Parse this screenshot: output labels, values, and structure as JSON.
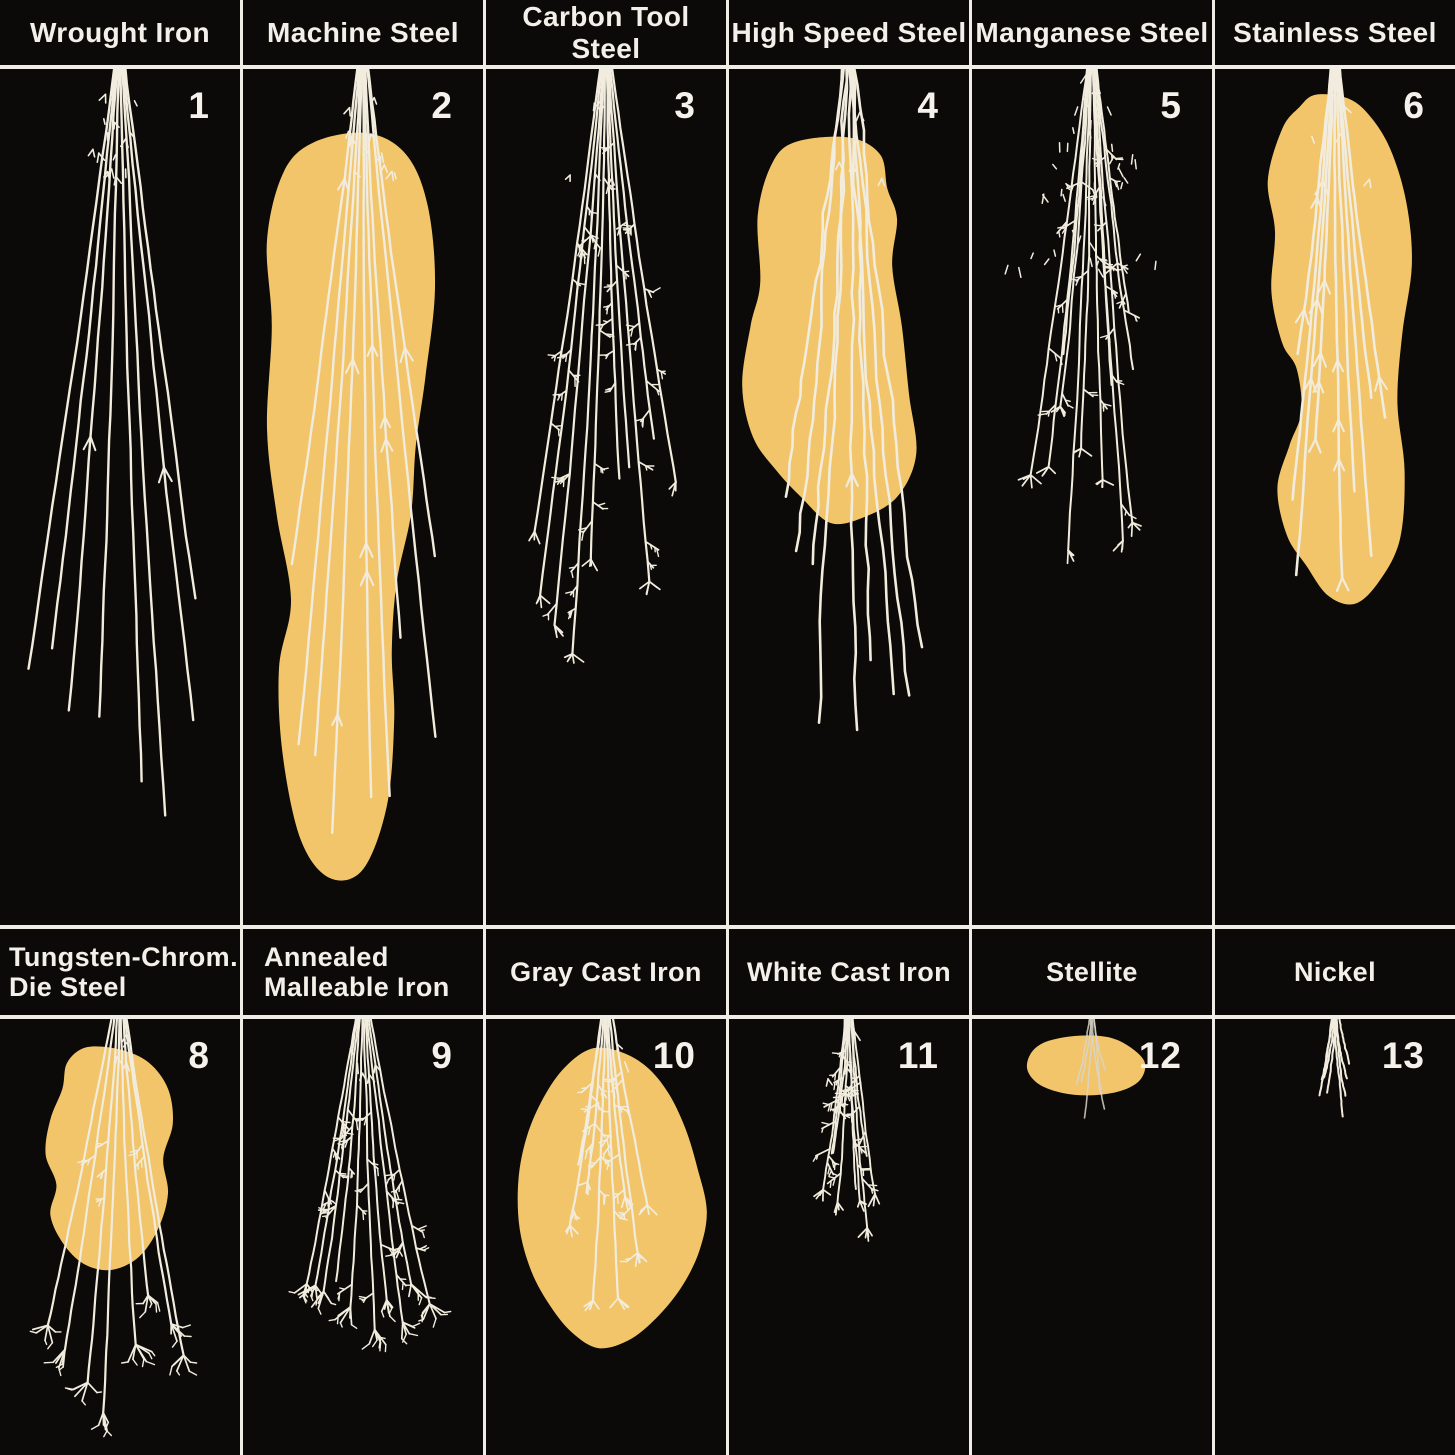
{
  "figure": {
    "description_numbers_shown": [
      "1",
      "2",
      "3",
      "4",
      "5",
      "6",
      "8",
      "9",
      "10",
      "11",
      "12",
      "13"
    ]
  },
  "colors": {
    "panel_background": "#0b0a08",
    "grid_line": "#efede5",
    "label_text": "#f2f0e8",
    "spark_line": "#f1ecdd",
    "highlight_blob": "#f2c56a",
    "dim_spark": "#d9d5c9"
  },
  "panels": [
    {
      "label": "Wrought Iron",
      "number": "1",
      "row": 1,
      "spark": {
        "seed": 11,
        "count": 8,
        "spread": 0.13,
        "lenMin": 0.6,
        "lenMax": 0.93,
        "stroke": 2.4,
        "wav": 0.35,
        "apexCluster": 14,
        "arrows": 2,
        "arrowZone": [
          0.5,
          0.68
        ],
        "sprigs": 0,
        "sprigZone": [
          0,
          1
        ],
        "bursts": 0,
        "burstSize": 1
      },
      "blob": null
    },
    {
      "label": "Machine Steel",
      "number": "2",
      "row": 1,
      "spark": {
        "seed": 22,
        "count": 9,
        "spread": 0.112,
        "lenMin": 0.52,
        "lenMax": 0.97,
        "stroke": 2.4,
        "wav": 0.3,
        "apexCluster": 14,
        "arrows": 9,
        "arrowZone": [
          0.22,
          0.85
        ],
        "sprigs": 0,
        "sprigZone": [
          0,
          1
        ],
        "bursts": 0,
        "burstSize": 1
      },
      "blob": [
        [
          0.3,
          0.085
        ],
        [
          0.52,
          0.075
        ],
        [
          0.68,
          0.1
        ],
        [
          0.77,
          0.16
        ],
        [
          0.8,
          0.255
        ],
        [
          0.76,
          0.36
        ],
        [
          0.72,
          0.44
        ],
        [
          0.7,
          0.52
        ],
        [
          0.64,
          0.6
        ],
        [
          0.62,
          0.68
        ],
        [
          0.63,
          0.76
        ],
        [
          0.6,
          0.86
        ],
        [
          0.5,
          0.935
        ],
        [
          0.36,
          0.945
        ],
        [
          0.24,
          0.9
        ],
        [
          0.165,
          0.8
        ],
        [
          0.15,
          0.7
        ],
        [
          0.2,
          0.62
        ],
        [
          0.14,
          0.52
        ],
        [
          0.1,
          0.42
        ],
        [
          0.12,
          0.3
        ],
        [
          0.1,
          0.2
        ],
        [
          0.17,
          0.12
        ]
      ]
    },
    {
      "label": "Carbon Tool Steel",
      "number": "3",
      "row": 1,
      "spark": {
        "seed": 33,
        "count": 10,
        "spread": 0.125,
        "lenMin": 0.34,
        "lenMax": 0.78,
        "stroke": 2.2,
        "wav": 0.25,
        "apexCluster": 6,
        "arrows": 0,
        "arrowZone": [
          0,
          1
        ],
        "sprigs": 42,
        "sprigZone": [
          0.08,
          0.95
        ],
        "bursts": 7,
        "burstSize": 1
      },
      "blob": null
    },
    {
      "label": "High Speed Steel",
      "number": "4",
      "row": 1,
      "spark": {
        "seed": 44,
        "count": 9,
        "spread": 0.112,
        "lenMin": 0.47,
        "lenMax": 0.86,
        "stroke": 2.6,
        "wav": 1.6,
        "apexCluster": 4,
        "arrows": 0,
        "arrowZone": [
          0,
          1
        ],
        "centerArrowT": 0.62,
        "sprigs": 0,
        "sprigZone": [
          0,
          1
        ],
        "bursts": 0,
        "burstSize": 1
      },
      "blob": [
        [
          0.28,
          0.085
        ],
        [
          0.5,
          0.08
        ],
        [
          0.63,
          0.1
        ],
        [
          0.66,
          0.14
        ],
        [
          0.7,
          0.175
        ],
        [
          0.68,
          0.23
        ],
        [
          0.72,
          0.3
        ],
        [
          0.75,
          0.38
        ],
        [
          0.78,
          0.45
        ],
        [
          0.7,
          0.5
        ],
        [
          0.55,
          0.525
        ],
        [
          0.42,
          0.53
        ],
        [
          0.3,
          0.5
        ],
        [
          0.2,
          0.47
        ],
        [
          0.1,
          0.43
        ],
        [
          0.055,
          0.37
        ],
        [
          0.09,
          0.3
        ],
        [
          0.13,
          0.25
        ],
        [
          0.12,
          0.17
        ],
        [
          0.18,
          0.11
        ]
      ]
    },
    {
      "label": "Manganese Steel",
      "number": "5",
      "row": 1,
      "spark": {
        "seed": 55,
        "count": 12,
        "spread": 0.118,
        "lenMin": 0.28,
        "lenMax": 0.64,
        "stroke": 2.0,
        "wav": 0.4,
        "apexCluster": 0,
        "apexNet": 46,
        "arrows": 0,
        "arrowZone": [
          0,
          1
        ],
        "sprigs": 26,
        "sprigZone": [
          0.3,
          1
        ],
        "bursts": 8,
        "burstSize": 1
      },
      "blob": null
    },
    {
      "label": "Stainless Steel",
      "number": "6",
      "row": 1,
      "spark": {
        "seed": 66,
        "count": 9,
        "spread": 0.1,
        "lenMin": 0.34,
        "lenMax": 0.7,
        "stroke": 2.6,
        "wav": 0.3,
        "apexCluster": 5,
        "arrows": 12,
        "arrowZone": [
          0.25,
          0.95
        ],
        "terminalArrows": 2,
        "sprigs": 0,
        "sprigZone": [
          0,
          1
        ],
        "bursts": 0,
        "burstSize": 1
      },
      "blob": [
        [
          0.42,
          0.03
        ],
        [
          0.56,
          0.035
        ],
        [
          0.66,
          0.06
        ],
        [
          0.74,
          0.1
        ],
        [
          0.8,
          0.16
        ],
        [
          0.82,
          0.23
        ],
        [
          0.78,
          0.31
        ],
        [
          0.76,
          0.39
        ],
        [
          0.79,
          0.47
        ],
        [
          0.77,
          0.55
        ],
        [
          0.68,
          0.6
        ],
        [
          0.58,
          0.625
        ],
        [
          0.47,
          0.615
        ],
        [
          0.38,
          0.58
        ],
        [
          0.3,
          0.545
        ],
        [
          0.26,
          0.49
        ],
        [
          0.31,
          0.44
        ],
        [
          0.36,
          0.4
        ],
        [
          0.34,
          0.35
        ],
        [
          0.28,
          0.32
        ],
        [
          0.235,
          0.26
        ],
        [
          0.25,
          0.19
        ],
        [
          0.22,
          0.13
        ],
        [
          0.28,
          0.07
        ],
        [
          0.35,
          0.045
        ]
      ]
    },
    {
      "label": "Tungsten-Chrom.\nDie Steel",
      "number": "8",
      "row": 2,
      "spark": {
        "seed": 88,
        "count": 8,
        "spread": 0.165,
        "lenMin": 0.55,
        "lenMax": 0.95,
        "stroke": 2.2,
        "wav": 0.3,
        "apexCluster": 4,
        "arrows": 0,
        "arrowZone": [
          0,
          1
        ],
        "sprigs": 6,
        "sprigZone": [
          0.3,
          0.55
        ],
        "bursts": 8,
        "burstSize": 2
      },
      "blob": [
        [
          0.36,
          0.065
        ],
        [
          0.5,
          0.07
        ],
        [
          0.62,
          0.1
        ],
        [
          0.7,
          0.16
        ],
        [
          0.72,
          0.24
        ],
        [
          0.68,
          0.32
        ],
        [
          0.7,
          0.4
        ],
        [
          0.66,
          0.48
        ],
        [
          0.58,
          0.545
        ],
        [
          0.47,
          0.575
        ],
        [
          0.36,
          0.565
        ],
        [
          0.27,
          0.52
        ],
        [
          0.21,
          0.45
        ],
        [
          0.235,
          0.38
        ],
        [
          0.19,
          0.31
        ],
        [
          0.21,
          0.23
        ],
        [
          0.26,
          0.16
        ],
        [
          0.28,
          0.1
        ]
      ]
    },
    {
      "label": "Annealed\nMalleable Iron",
      "number": "9",
      "row": 2,
      "spark": {
        "seed": 99,
        "count": 10,
        "spread": 0.17,
        "lenMin": 0.42,
        "lenMax": 0.82,
        "stroke": 2.0,
        "wav": 0.3,
        "apexCluster": 5,
        "arrows": 0,
        "arrowZone": [
          0,
          1
        ],
        "sprigs": 30,
        "sprigZone": [
          0.35,
          1
        ],
        "bursts": 9,
        "burstSize": 2
      },
      "blob": null
    },
    {
      "label": "Gray Cast Iron",
      "number": "10",
      "row": 2,
      "spark": {
        "seed": 110,
        "count": 8,
        "spread": 0.13,
        "lenMin": 0.28,
        "lenMax": 0.7,
        "stroke": 2.2,
        "wav": 0.3,
        "apexCluster": 3,
        "arrows": 0,
        "arrowZone": [
          0,
          1
        ],
        "sprigs": 22,
        "sprigZone": [
          0.25,
          1
        ],
        "bursts": 7,
        "burstSize": 1
      },
      "blob": [
        [
          0.44,
          0.068
        ],
        [
          0.56,
          0.075
        ],
        [
          0.67,
          0.11
        ],
        [
          0.76,
          0.17
        ],
        [
          0.83,
          0.25
        ],
        [
          0.88,
          0.34
        ],
        [
          0.92,
          0.44
        ],
        [
          0.89,
          0.53
        ],
        [
          0.82,
          0.61
        ],
        [
          0.72,
          0.68
        ],
        [
          0.6,
          0.735
        ],
        [
          0.47,
          0.755
        ],
        [
          0.36,
          0.72
        ],
        [
          0.27,
          0.66
        ],
        [
          0.19,
          0.58
        ],
        [
          0.14,
          0.48
        ],
        [
          0.135,
          0.37
        ],
        [
          0.17,
          0.27
        ],
        [
          0.24,
          0.18
        ],
        [
          0.33,
          0.11
        ]
      ]
    },
    {
      "label": "White Cast Iron",
      "number": "11",
      "row": 2,
      "spark": {
        "seed": 111,
        "count": 9,
        "spread": 0.075,
        "lenMin": 0.25,
        "lenMax": 0.55,
        "stroke": 1.9,
        "wav": 0.3,
        "apexCluster": 3,
        "arrows": 0,
        "arrowZone": [
          0,
          1
        ],
        "sprigs": 24,
        "sprigZone": [
          0.2,
          0.95
        ],
        "bursts": 5,
        "burstSize": 1
      },
      "blob": null
    },
    {
      "label": "Stellite",
      "number": "12",
      "row": 2,
      "spark": {
        "seed": 122,
        "count": 6,
        "spread": 0.06,
        "lenMin": 0.12,
        "lenMax": 0.28,
        "stroke": 1.6,
        "wav": 0.3,
        "dim": true,
        "apexCluster": 0,
        "arrows": 0,
        "arrowZone": [
          0,
          1
        ],
        "sprigs": 0,
        "sprigZone": [
          0,
          1
        ],
        "bursts": 0,
        "burstSize": 1
      },
      "blob": [
        [
          0.32,
          0.05
        ],
        [
          0.45,
          0.038
        ],
        [
          0.57,
          0.042
        ],
        [
          0.66,
          0.065
        ],
        [
          0.72,
          0.1
        ],
        [
          0.7,
          0.14
        ],
        [
          0.62,
          0.165
        ],
        [
          0.5,
          0.175
        ],
        [
          0.38,
          0.17
        ],
        [
          0.28,
          0.15
        ],
        [
          0.23,
          0.115
        ],
        [
          0.25,
          0.075
        ]
      ]
    },
    {
      "label": "Nickel",
      "number": "13",
      "row": 2,
      "spark": {
        "seed": 133,
        "count": 8,
        "spread": 0.075,
        "lenMin": 0.1,
        "lenMax": 0.25,
        "stroke": 2.0,
        "wav": 0.35,
        "apexCluster": 0,
        "arrows": 0,
        "arrowZone": [
          0,
          1
        ],
        "sprigs": 0,
        "sprigZone": [
          0,
          1
        ],
        "bursts": 0,
        "burstSize": 1
      },
      "blob": null
    }
  ]
}
